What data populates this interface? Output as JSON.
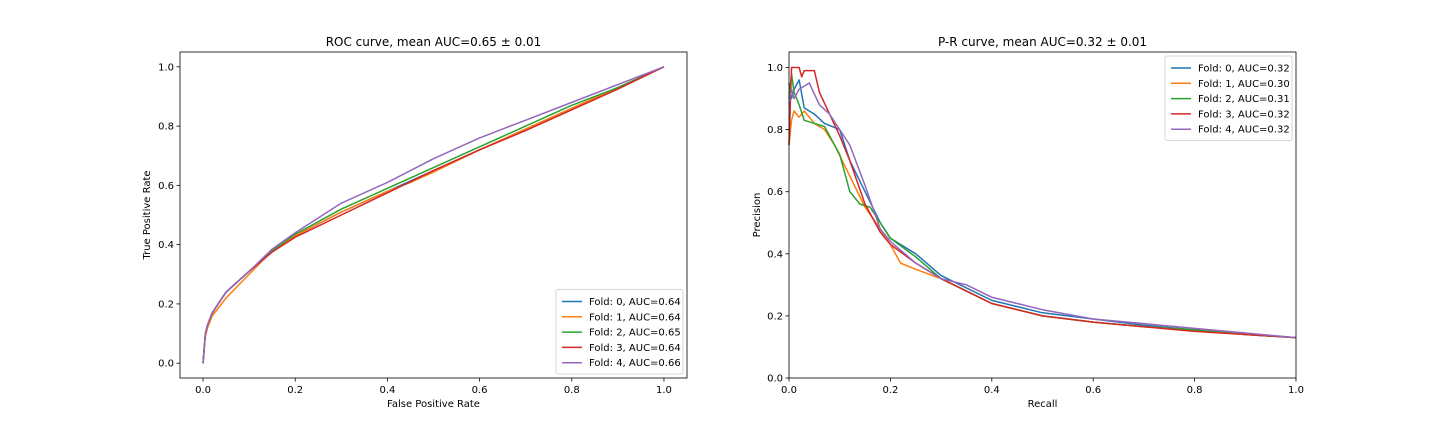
{
  "chart_data": [
    {
      "type": "line",
      "title": "ROC curve, mean AUC=0.65 ± 0.01",
      "xlabel": "False Positive Rate",
      "ylabel": "True Positive Rate",
      "xlim": [
        -0.05,
        1.05
      ],
      "ylim": [
        -0.05,
        1.05
      ],
      "xticks": [
        0.0,
        0.2,
        0.4,
        0.6,
        0.8,
        1.0
      ],
      "yticks": [
        0.0,
        0.2,
        0.4,
        0.6,
        0.8,
        1.0
      ],
      "xtick_labels": [
        "0.0",
        "0.2",
        "0.4",
        "0.6",
        "0.8",
        "1.0"
      ],
      "ytick_labels": [
        "0.0",
        "0.2",
        "0.4",
        "0.6",
        "0.8",
        "1.0"
      ],
      "grid": false,
      "legend_position": "lower-right",
      "series": [
        {
          "name": "Fold: 0, AUC=0.64",
          "color": "#1f77b4",
          "x": [
            0.0,
            0.005,
            0.01,
            0.02,
            0.05,
            0.1,
            0.15,
            0.2,
            0.3,
            0.4,
            0.5,
            0.6,
            0.7,
            0.8,
            0.9,
            1.0
          ],
          "y": [
            0.0,
            0.1,
            0.13,
            0.17,
            0.24,
            0.31,
            0.38,
            0.43,
            0.51,
            0.58,
            0.65,
            0.72,
            0.79,
            0.86,
            0.93,
            1.0
          ]
        },
        {
          "name": "Fold: 1, AUC=0.64",
          "color": "#ff7f0e",
          "x": [
            0.0,
            0.005,
            0.01,
            0.02,
            0.05,
            0.1,
            0.15,
            0.2,
            0.3,
            0.4,
            0.45,
            0.5,
            0.6,
            0.7,
            0.8,
            0.9,
            1.0
          ],
          "y": [
            0.0,
            0.09,
            0.12,
            0.16,
            0.22,
            0.3,
            0.38,
            0.43,
            0.51,
            0.58,
            0.61,
            0.645,
            0.72,
            0.79,
            0.86,
            0.93,
            1.0
          ]
        },
        {
          "name": "Fold: 2, AUC=0.65",
          "color": "#2ca02c",
          "x": [
            0.0,
            0.005,
            0.01,
            0.02,
            0.05,
            0.1,
            0.15,
            0.2,
            0.3,
            0.4,
            0.5,
            0.6,
            0.7,
            0.8,
            0.9,
            1.0
          ],
          "y": [
            0.0,
            0.1,
            0.13,
            0.17,
            0.24,
            0.31,
            0.38,
            0.435,
            0.52,
            0.59,
            0.66,
            0.73,
            0.8,
            0.87,
            0.93,
            1.0
          ]
        },
        {
          "name": "Fold: 3, AUC=0.64",
          "color": "#d62728",
          "x": [
            0.0,
            0.005,
            0.01,
            0.02,
            0.05,
            0.1,
            0.15,
            0.2,
            0.3,
            0.4,
            0.5,
            0.6,
            0.7,
            0.8,
            0.9,
            1.0
          ],
          "y": [
            0.0,
            0.1,
            0.13,
            0.17,
            0.24,
            0.31,
            0.375,
            0.425,
            0.5,
            0.575,
            0.65,
            0.72,
            0.785,
            0.855,
            0.925,
            1.0
          ]
        },
        {
          "name": "Fold: 4, AUC=0.66",
          "color": "#9467bd",
          "x": [
            0.0,
            0.005,
            0.01,
            0.02,
            0.05,
            0.1,
            0.15,
            0.2,
            0.3,
            0.4,
            0.5,
            0.6,
            0.7,
            0.8,
            0.9,
            1.0
          ],
          "y": [
            0.0,
            0.1,
            0.13,
            0.17,
            0.24,
            0.31,
            0.385,
            0.44,
            0.54,
            0.61,
            0.69,
            0.76,
            0.82,
            0.88,
            0.94,
            1.0
          ]
        }
      ]
    },
    {
      "type": "line",
      "title": "P-R curve, mean AUC=0.32 ± 0.01",
      "xlabel": "Recall",
      "ylabel": "Precision",
      "xlim": [
        0.0,
        1.0
      ],
      "ylim": [
        0.0,
        1.05
      ],
      "xticks": [
        0.0,
        0.2,
        0.4,
        0.6,
        0.8,
        1.0
      ],
      "yticks": [
        0.0,
        0.2,
        0.4,
        0.6,
        0.8,
        1.0
      ],
      "xtick_labels": [
        "0.0",
        "0.2",
        "0.4",
        "0.6",
        "0.8",
        "1.0"
      ],
      "ytick_labels": [
        "0.0",
        "0.2",
        "0.4",
        "0.6",
        "0.8",
        "1.0"
      ],
      "grid": false,
      "legend_position": "upper-right",
      "series": [
        {
          "name": "Fold: 0, AUC=0.32",
          "color": "#1f77b4",
          "x": [
            0.0,
            0.005,
            0.01,
            0.02,
            0.03,
            0.05,
            0.07,
            0.1,
            0.12,
            0.15,
            0.18,
            0.2,
            0.25,
            0.3,
            0.35,
            0.4,
            0.5,
            0.6,
            0.7,
            0.8,
            0.9,
            1.0
          ],
          "y": [
            0.95,
            0.9,
            0.93,
            0.96,
            0.87,
            0.85,
            0.82,
            0.8,
            0.7,
            0.6,
            0.5,
            0.45,
            0.4,
            0.33,
            0.29,
            0.25,
            0.21,
            0.19,
            0.17,
            0.155,
            0.14,
            0.13
          ]
        },
        {
          "name": "Fold: 1, AUC=0.30",
          "color": "#ff7f0e",
          "x": [
            0.0,
            0.005,
            0.01,
            0.02,
            0.03,
            0.05,
            0.07,
            0.09,
            0.12,
            0.15,
            0.18,
            0.2,
            0.22,
            0.25,
            0.3,
            0.35,
            0.4,
            0.5,
            0.6,
            0.7,
            0.8,
            0.9,
            1.0
          ],
          "y": [
            0.75,
            0.83,
            0.86,
            0.84,
            0.86,
            0.82,
            0.8,
            0.75,
            0.65,
            0.55,
            0.48,
            0.43,
            0.37,
            0.35,
            0.32,
            0.28,
            0.24,
            0.2,
            0.18,
            0.165,
            0.155,
            0.14,
            0.13
          ]
        },
        {
          "name": "Fold: 2, AUC=0.31",
          "color": "#2ca02c",
          "x": [
            0.0,
            0.005,
            0.01,
            0.02,
            0.03,
            0.05,
            0.07,
            0.1,
            0.12,
            0.14,
            0.16,
            0.2,
            0.25,
            0.3,
            0.35,
            0.4,
            0.5,
            0.6,
            0.7,
            0.8,
            0.9,
            1.0
          ],
          "y": [
            0.9,
            0.98,
            0.92,
            0.88,
            0.83,
            0.82,
            0.81,
            0.72,
            0.6,
            0.56,
            0.55,
            0.45,
            0.39,
            0.32,
            0.28,
            0.24,
            0.2,
            0.18,
            0.165,
            0.155,
            0.14,
            0.13
          ]
        },
        {
          "name": "Fold: 3, AUC=0.32",
          "color": "#d62728",
          "x": [
            0.0,
            0.005,
            0.02,
            0.025,
            0.03,
            0.05,
            0.06,
            0.08,
            0.1,
            0.12,
            0.15,
            0.18,
            0.2,
            0.25,
            0.3,
            0.35,
            0.4,
            0.5,
            0.6,
            0.7,
            0.8,
            0.9,
            1.0
          ],
          "y": [
            0.75,
            1.0,
            1.0,
            0.97,
            0.99,
            0.99,
            0.92,
            0.85,
            0.78,
            0.7,
            0.56,
            0.47,
            0.43,
            0.37,
            0.32,
            0.28,
            0.24,
            0.2,
            0.18,
            0.165,
            0.15,
            0.14,
            0.13
          ]
        },
        {
          "name": "Fold: 4, AUC=0.32",
          "color": "#9467bd",
          "x": [
            0.0,
            0.005,
            0.01,
            0.02,
            0.04,
            0.06,
            0.08,
            0.1,
            0.12,
            0.15,
            0.18,
            0.2,
            0.25,
            0.3,
            0.35,
            0.4,
            0.5,
            0.6,
            0.7,
            0.8,
            0.9,
            1.0
          ],
          "y": [
            0.88,
            0.93,
            0.9,
            0.93,
            0.95,
            0.88,
            0.85,
            0.8,
            0.75,
            0.62,
            0.48,
            0.44,
            0.37,
            0.32,
            0.3,
            0.26,
            0.22,
            0.19,
            0.175,
            0.16,
            0.145,
            0.13
          ]
        }
      ]
    }
  ]
}
